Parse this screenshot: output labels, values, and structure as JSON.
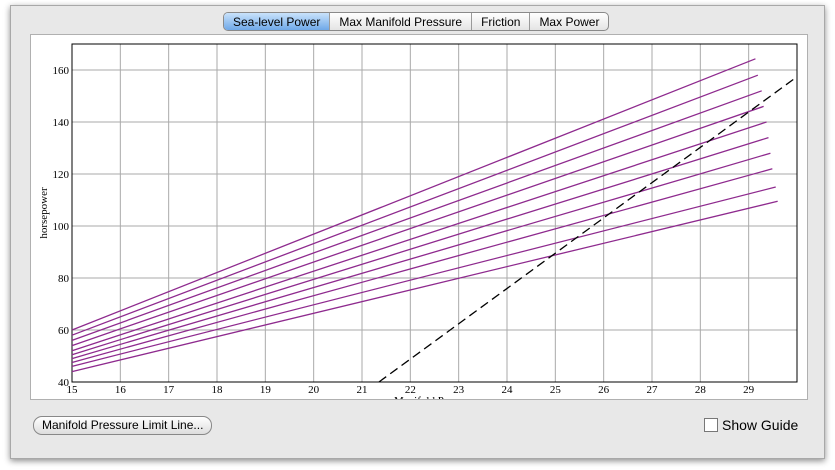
{
  "tabs": [
    "Sea-level Power",
    "Max Manifold Pressure",
    "Friction",
    "Max Power"
  ],
  "selected_tab": 0,
  "chart_data": {
    "type": "line",
    "x_label": "Manifold Pressure",
    "y_label": "horsepower",
    "xlim": [
      15,
      30
    ],
    "ylim": [
      40,
      170
    ],
    "xticks": [
      15,
      16,
      17,
      18,
      19,
      20,
      21,
      22,
      23,
      24,
      25,
      26,
      27,
      28,
      29
    ],
    "yticks": [
      40,
      60,
      80,
      100,
      120,
      140,
      160
    ],
    "grid": true,
    "series": [
      {
        "color": "#8e2a8e",
        "x": [
          15,
          29.14
        ],
        "values": [
          60,
          164.3
        ]
      },
      {
        "color": "#8e2a8e",
        "x": [
          15,
          29.19
        ],
        "values": [
          58,
          158
        ]
      },
      {
        "color": "#8e2a8e",
        "x": [
          15,
          29.27
        ],
        "values": [
          56,
          152
        ]
      },
      {
        "color": "#8e2a8e",
        "x": [
          15,
          29.31
        ],
        "values": [
          54,
          146
        ]
      },
      {
        "color": "#8e2a8e",
        "x": [
          15,
          29.37
        ],
        "values": [
          52,
          140
        ]
      },
      {
        "color": "#8e2a8e",
        "x": [
          15,
          29.41
        ],
        "values": [
          50.5,
          134
        ]
      },
      {
        "color": "#8e2a8e",
        "x": [
          15,
          29.45
        ],
        "values": [
          49,
          128
        ]
      },
      {
        "color": "#8e2a8e",
        "x": [
          15,
          29.49
        ],
        "values": [
          47.5,
          122
        ]
      },
      {
        "color": "#8e2a8e",
        "x": [
          15,
          29.56
        ],
        "values": [
          46,
          115
        ]
      },
      {
        "color": "#8e2a8e",
        "x": [
          15,
          29.6
        ],
        "values": [
          44,
          109.5
        ]
      },
      {
        "color": "#000000",
        "dashed": true,
        "x": [
          21.35,
          30
        ],
        "values": [
          40,
          157.4
        ]
      }
    ]
  },
  "limit_button": "Manifold Pressure Limit Line...",
  "guide": {
    "label": "Show Guide",
    "checked": false
  }
}
